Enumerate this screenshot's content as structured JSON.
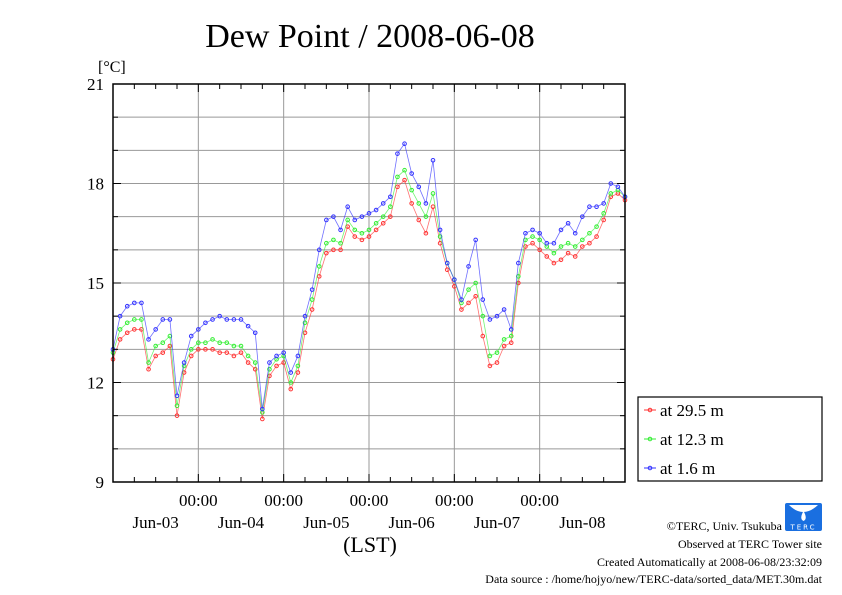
{
  "chart_data": {
    "type": "line",
    "title": "Dew Point / 2008-06-08",
    "ylabel": "[°C]",
    "xlabel": "(LST)",
    "ylim": [
      9,
      21
    ],
    "yticks": [
      9,
      12,
      15,
      18,
      21
    ],
    "grid": true,
    "x_unit": "hours since Jun-03 00:00",
    "xlim": [
      0,
      144
    ],
    "x_step_hours": 2,
    "xtick_time_labels": [
      "00:00",
      "00:00",
      "00:00",
      "00:00",
      "00:00"
    ],
    "xtick_day_labels": [
      "Jun-03",
      "Jun-04",
      "Jun-05",
      "Jun-06",
      "Jun-07",
      "Jun-08"
    ],
    "legend_position": "right-bottom outside",
    "series": [
      {
        "name": "at 29.5 m",
        "color": "#ff3333",
        "values": [
          12.7,
          13.3,
          13.5,
          13.6,
          13.6,
          12.4,
          12.8,
          12.9,
          13.1,
          11.0,
          12.3,
          12.8,
          13.0,
          13.0,
          13.0,
          12.9,
          12.9,
          12.8,
          12.9,
          12.6,
          12.4,
          10.9,
          12.2,
          12.5,
          12.6,
          11.8,
          12.3,
          13.5,
          14.2,
          15.2,
          15.9,
          16.0,
          16.0,
          16.7,
          16.4,
          16.3,
          16.4,
          16.6,
          16.8,
          17.0,
          17.9,
          18.1,
          17.4,
          16.9,
          16.5,
          17.3,
          16.2,
          15.4,
          14.9,
          14.2,
          14.4,
          14.6,
          13.4,
          12.5,
          12.6,
          13.1,
          13.2,
          15.0,
          16.1,
          16.2,
          16.0,
          15.8,
          15.6,
          15.7,
          15.9,
          15.8,
          16.1,
          16.2,
          16.4,
          16.9,
          17.6,
          17.7,
          17.5
        ]
      },
      {
        "name": "at 12.3 m",
        "color": "#33ee33",
        "values": [
          12.9,
          13.6,
          13.8,
          13.9,
          13.9,
          12.6,
          13.1,
          13.2,
          13.4,
          11.3,
          12.5,
          13.0,
          13.2,
          13.2,
          13.3,
          13.2,
          13.2,
          13.1,
          13.1,
          12.8,
          12.6,
          11.1,
          12.4,
          12.7,
          12.8,
          12.0,
          12.5,
          13.8,
          14.5,
          15.5,
          16.2,
          16.3,
          16.2,
          16.9,
          16.6,
          16.5,
          16.6,
          16.8,
          17.0,
          17.3,
          18.2,
          18.4,
          17.8,
          17.4,
          17.0,
          17.7,
          16.4,
          15.6,
          15.1,
          14.4,
          14.8,
          15.0,
          14.0,
          12.8,
          12.9,
          13.3,
          13.4,
          15.2,
          16.3,
          16.4,
          16.3,
          16.1,
          15.9,
          16.1,
          16.2,
          16.1,
          16.3,
          16.5,
          16.7,
          17.1,
          17.7,
          17.8,
          17.6
        ]
      },
      {
        "name": "at 1.6 m",
        "color": "#3333ff",
        "values": [
          13.0,
          14.0,
          14.3,
          14.4,
          14.4,
          13.3,
          13.6,
          13.9,
          13.9,
          11.6,
          12.6,
          13.4,
          13.6,
          13.8,
          13.9,
          14.0,
          13.9,
          13.9,
          13.9,
          13.7,
          13.5,
          11.2,
          12.6,
          12.8,
          12.9,
          12.3,
          12.8,
          14.0,
          14.8,
          16.0,
          16.9,
          17.0,
          16.6,
          17.3,
          16.9,
          17.0,
          17.1,
          17.2,
          17.4,
          17.6,
          18.9,
          19.2,
          18.3,
          17.9,
          17.4,
          18.7,
          16.6,
          15.6,
          15.1,
          14.5,
          15.5,
          16.3,
          14.5,
          13.9,
          14.0,
          14.2,
          13.6,
          15.6,
          16.5,
          16.6,
          16.5,
          16.2,
          16.2,
          16.6,
          16.8,
          16.5,
          17.0,
          17.3,
          17.3,
          17.4,
          18.0,
          17.9,
          17.6
        ]
      }
    ]
  },
  "footer": {
    "copyright": "©TERC, Univ. Tsukuba",
    "site": "Observed at TERC Tower site",
    "created": "Created Automatically at 2008-06-08/23:32:09",
    "source": "Data source : /home/hojyo/new/TERC-data/sorted_data/MET.30m.dat",
    "logo_text": "TERC"
  }
}
